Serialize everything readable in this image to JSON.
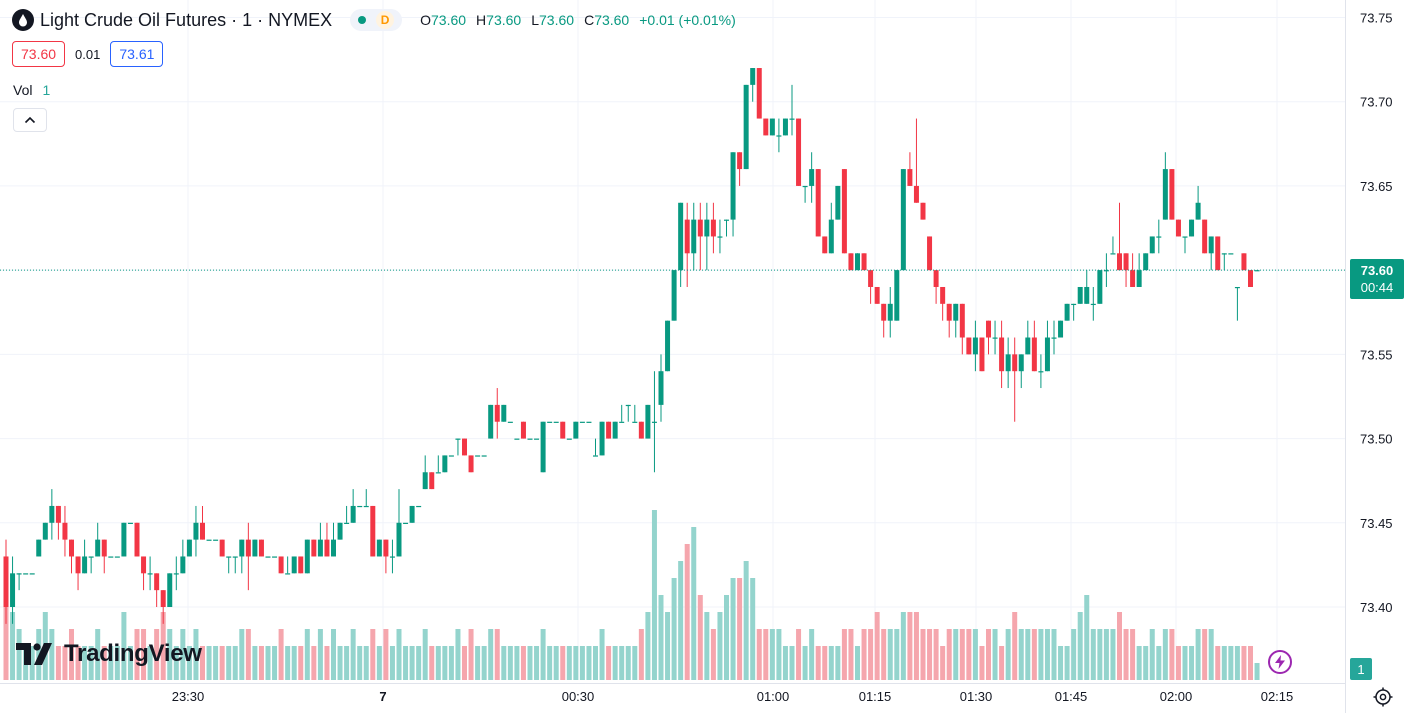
{
  "header": {
    "title": "Light Crude Oil Futures · 1 · NYMEX",
    "status_letter": "D",
    "ohlc": [
      {
        "k": "O",
        "v": "73.60"
      },
      {
        "k": "H",
        "v": "73.60"
      },
      {
        "k": "L",
        "v": "73.60"
      },
      {
        "k": "C",
        "v": "73.60"
      }
    ],
    "change": "+0.01 (+0.01%)"
  },
  "quotes": {
    "bid": "73.60",
    "spread": "0.01",
    "ask": "73.61"
  },
  "volume": {
    "label": "Vol",
    "value": "1"
  },
  "logo": {
    "text": "TradingView"
  },
  "current_price": {
    "price": "73.60",
    "countdown": "00:44"
  },
  "volume_axis_label": "1",
  "icons": {
    "symbol": "drop-icon",
    "collapse": "chevron-up-icon",
    "replay": "lightning-icon",
    "settings": "gear-icon"
  },
  "colors": {
    "up": "#089981",
    "down": "#f23645",
    "volume_up": "#94d4cd",
    "volume_down": "#f5a6ad",
    "grid": "#f0f3fa"
  },
  "chart_data": {
    "type": "candlestick",
    "interval_minutes": 1,
    "ylim": [
      73.36,
      73.76
    ],
    "y_ticks": [
      "73.40",
      "73.45",
      "73.50",
      "73.55",
      "73.60",
      "73.65",
      "73.70",
      "73.75"
    ],
    "x_ticks": [
      "23:30",
      "7",
      "00:30",
      "01:00",
      "01:15",
      "01:30",
      "01:45",
      "02:00",
      "02:15"
    ],
    "candles": [
      [
        73.43,
        73.44,
        73.39,
        73.4,
        6
      ],
      [
        73.4,
        73.43,
        73.39,
        73.42,
        4
      ],
      [
        73.42,
        73.42,
        73.41,
        73.42,
        3
      ],
      [
        73.42,
        73.42,
        73.42,
        73.42,
        2
      ],
      [
        73.42,
        73.42,
        73.42,
        73.42,
        2
      ],
      [
        73.43,
        73.44,
        73.43,
        73.44,
        3
      ],
      [
        73.44,
        73.45,
        73.44,
        73.45,
        4
      ],
      [
        73.45,
        73.47,
        73.44,
        73.46,
        3
      ],
      [
        73.46,
        73.46,
        73.44,
        73.45,
        2
      ],
      [
        73.45,
        73.46,
        73.43,
        73.44,
        2
      ],
      [
        73.44,
        73.44,
        73.42,
        73.43,
        3
      ],
      [
        73.43,
        73.43,
        73.41,
        73.42,
        2
      ],
      [
        73.42,
        73.44,
        73.42,
        73.43,
        2
      ],
      [
        73.43,
        73.43,
        73.42,
        73.43,
        2
      ],
      [
        73.43,
        73.45,
        73.43,
        73.44,
        3
      ],
      [
        73.44,
        73.44,
        73.42,
        73.43,
        2
      ],
      [
        73.43,
        73.43,
        73.43,
        73.43,
        2
      ],
      [
        73.43,
        73.43,
        73.43,
        73.43,
        2
      ],
      [
        73.43,
        73.45,
        73.43,
        73.45,
        4
      ],
      [
        73.45,
        73.45,
        73.45,
        73.45,
        2
      ],
      [
        73.45,
        73.45,
        73.43,
        73.43,
        3
      ],
      [
        73.43,
        73.43,
        73.41,
        73.42,
        3
      ],
      [
        73.42,
        73.43,
        73.41,
        73.42,
        2
      ],
      [
        73.42,
        73.42,
        73.4,
        73.41,
        3
      ],
      [
        73.41,
        73.41,
        73.39,
        73.4,
        4
      ],
      [
        73.4,
        73.42,
        73.4,
        73.42,
        3
      ],
      [
        73.42,
        73.43,
        73.41,
        73.42,
        2
      ],
      [
        73.42,
        73.44,
        73.42,
        73.43,
        3
      ],
      [
        73.43,
        73.44,
        73.43,
        73.44,
        2
      ],
      [
        73.44,
        73.46,
        73.43,
        73.45,
        3
      ],
      [
        73.45,
        73.46,
        73.44,
        73.44,
        2
      ],
      [
        73.44,
        73.44,
        73.44,
        73.44,
        2
      ],
      [
        73.44,
        73.44,
        73.44,
        73.44,
        2
      ],
      [
        73.44,
        73.44,
        73.43,
        73.43,
        2
      ],
      [
        73.43,
        73.43,
        73.42,
        73.43,
        2
      ],
      [
        73.43,
        73.43,
        73.42,
        73.43,
        2
      ],
      [
        73.43,
        73.44,
        73.42,
        73.44,
        3
      ],
      [
        73.44,
        73.45,
        73.41,
        73.43,
        3
      ],
      [
        73.43,
        73.44,
        73.43,
        73.44,
        2
      ],
      [
        73.44,
        73.44,
        73.43,
        73.43,
        2
      ],
      [
        73.43,
        73.43,
        73.43,
        73.43,
        2
      ],
      [
        73.43,
        73.43,
        73.43,
        73.43,
        2
      ],
      [
        73.43,
        73.43,
        73.42,
        73.42,
        3
      ],
      [
        73.42,
        73.43,
        73.42,
        73.42,
        2
      ],
      [
        73.42,
        73.43,
        73.42,
        73.43,
        2
      ],
      [
        73.43,
        73.43,
        73.42,
        73.42,
        2
      ],
      [
        73.42,
        73.44,
        73.42,
        73.44,
        3
      ],
      [
        73.44,
        73.44,
        73.43,
        73.43,
        2
      ],
      [
        73.43,
        73.45,
        73.43,
        73.44,
        3
      ],
      [
        73.44,
        73.45,
        73.43,
        73.43,
        2
      ],
      [
        73.43,
        73.45,
        73.43,
        73.44,
        3
      ],
      [
        73.44,
        73.45,
        73.44,
        73.45,
        2
      ],
      [
        73.45,
        73.46,
        73.45,
        73.45,
        2
      ],
      [
        73.45,
        73.47,
        73.45,
        73.46,
        3
      ],
      [
        73.46,
        73.46,
        73.46,
        73.46,
        2
      ],
      [
        73.46,
        73.47,
        73.46,
        73.46,
        2
      ],
      [
        73.46,
        73.46,
        73.43,
        73.43,
        3
      ],
      [
        73.43,
        73.44,
        73.43,
        73.44,
        2
      ],
      [
        73.44,
        73.44,
        73.42,
        73.43,
        3
      ],
      [
        73.43,
        73.44,
        73.42,
        73.43,
        2
      ],
      [
        73.43,
        73.47,
        73.43,
        73.45,
        3
      ],
      [
        73.45,
        73.45,
        73.45,
        73.45,
        2
      ],
      [
        73.45,
        73.46,
        73.45,
        73.46,
        2
      ],
      [
        73.46,
        73.46,
        73.46,
        73.46,
        2
      ],
      [
        73.47,
        73.49,
        73.47,
        73.48,
        3
      ],
      [
        73.48,
        73.48,
        73.47,
        73.47,
        2
      ],
      [
        73.48,
        73.49,
        73.48,
        73.48,
        2
      ],
      [
        73.48,
        73.49,
        73.48,
        73.49,
        2
      ],
      [
        73.49,
        73.49,
        73.49,
        73.49,
        2
      ],
      [
        73.5,
        73.5,
        73.49,
        73.5,
        3
      ],
      [
        73.5,
        73.5,
        73.49,
        73.49,
        2
      ],
      [
        73.49,
        73.49,
        73.48,
        73.48,
        3
      ],
      [
        73.49,
        73.49,
        73.49,
        73.49,
        2
      ],
      [
        73.49,
        73.49,
        73.49,
        73.49,
        2
      ],
      [
        73.5,
        73.52,
        73.5,
        73.52,
        3
      ],
      [
        73.52,
        73.53,
        73.5,
        73.51,
        3
      ],
      [
        73.51,
        73.52,
        73.51,
        73.52,
        2
      ],
      [
        73.51,
        73.51,
        73.51,
        73.51,
        2
      ],
      [
        73.5,
        73.5,
        73.5,
        73.5,
        2
      ],
      [
        73.51,
        73.51,
        73.5,
        73.5,
        2
      ],
      [
        73.5,
        73.5,
        73.5,
        73.5,
        2
      ],
      [
        73.5,
        73.5,
        73.5,
        73.5,
        2
      ],
      [
        73.48,
        73.51,
        73.48,
        73.51,
        3
      ],
      [
        73.51,
        73.51,
        73.51,
        73.51,
        2
      ],
      [
        73.51,
        73.51,
        73.51,
        73.51,
        2
      ],
      [
        73.51,
        73.51,
        73.5,
        73.5,
        2
      ],
      [
        73.5,
        73.5,
        73.5,
        73.5,
        2
      ],
      [
        73.5,
        73.51,
        73.5,
        73.51,
        2
      ],
      [
        73.51,
        73.51,
        73.51,
        73.51,
        2
      ],
      [
        73.51,
        73.51,
        73.51,
        73.51,
        2
      ],
      [
        73.49,
        73.5,
        73.49,
        73.49,
        2
      ],
      [
        73.49,
        73.51,
        73.49,
        73.51,
        3
      ],
      [
        73.51,
        73.51,
        73.5,
        73.5,
        2
      ],
      [
        73.5,
        73.51,
        73.5,
        73.51,
        2
      ],
      [
        73.51,
        73.52,
        73.51,
        73.51,
        2
      ],
      [
        73.52,
        73.52,
        73.51,
        73.52,
        2
      ],
      [
        73.51,
        73.52,
        73.51,
        73.51,
        2
      ],
      [
        73.51,
        73.51,
        73.5,
        73.5,
        3
      ],
      [
        73.5,
        73.52,
        73.5,
        73.52,
        4
      ],
      [
        73.51,
        73.54,
        73.48,
        73.51,
        10
      ],
      [
        73.52,
        73.55,
        73.51,
        73.54,
        5
      ],
      [
        73.54,
        73.57,
        73.54,
        73.57,
        4
      ],
      [
        73.57,
        73.6,
        73.57,
        73.6,
        6
      ],
      [
        73.6,
        73.64,
        73.59,
        73.64,
        7
      ],
      [
        73.63,
        73.64,
        73.59,
        73.61,
        8
      ],
      [
        73.61,
        73.64,
        73.6,
        73.63,
        9
      ],
      [
        73.63,
        73.64,
        73.6,
        73.62,
        5
      ],
      [
        73.62,
        73.64,
        73.6,
        73.63,
        4
      ],
      [
        73.63,
        73.64,
        73.61,
        73.62,
        3
      ],
      [
        73.62,
        73.63,
        73.61,
        73.62,
        4
      ],
      [
        73.63,
        73.63,
        73.62,
        73.63,
        5
      ],
      [
        73.63,
        73.67,
        73.62,
        73.67,
        6
      ],
      [
        73.67,
        73.67,
        73.65,
        73.66,
        6
      ],
      [
        73.66,
        73.71,
        73.66,
        73.71,
        7
      ],
      [
        73.71,
        73.72,
        73.7,
        73.72,
        6
      ],
      [
        73.72,
        73.72,
        73.69,
        73.69,
        3
      ],
      [
        73.69,
        73.69,
        73.68,
        73.68,
        3
      ],
      [
        73.68,
        73.69,
        73.68,
        73.69,
        3
      ],
      [
        73.68,
        73.69,
        73.67,
        73.68,
        3
      ],
      [
        73.68,
        73.69,
        73.68,
        73.69,
        2
      ],
      [
        73.69,
        73.71,
        73.68,
        73.69,
        2
      ],
      [
        73.69,
        73.69,
        73.65,
        73.65,
        3
      ],
      [
        73.65,
        73.65,
        73.64,
        73.65,
        2
      ],
      [
        73.65,
        73.67,
        73.64,
        73.66,
        3
      ],
      [
        73.66,
        73.66,
        73.62,
        73.62,
        2
      ],
      [
        73.62,
        73.62,
        73.61,
        73.61,
        2
      ],
      [
        73.61,
        73.64,
        73.61,
        73.63,
        2
      ],
      [
        73.63,
        73.65,
        73.63,
        73.65,
        2
      ],
      [
        73.66,
        73.66,
        73.61,
        73.61,
        3
      ],
      [
        73.61,
        73.61,
        73.6,
        73.6,
        3
      ],
      [
        73.6,
        73.61,
        73.6,
        73.61,
        2
      ],
      [
        73.61,
        73.61,
        73.6,
        73.6,
        3
      ],
      [
        73.6,
        73.6,
        73.58,
        73.59,
        3
      ],
      [
        73.59,
        73.59,
        73.58,
        73.58,
        4
      ],
      [
        73.58,
        73.58,
        73.56,
        73.57,
        3
      ],
      [
        73.57,
        73.59,
        73.56,
        73.58,
        3
      ],
      [
        73.57,
        73.6,
        73.57,
        73.6,
        3
      ],
      [
        73.6,
        73.66,
        73.6,
        73.66,
        4
      ],
      [
        73.66,
        73.67,
        73.65,
        73.65,
        4
      ],
      [
        73.65,
        73.69,
        73.64,
        73.64,
        4
      ],
      [
        73.64,
        73.64,
        73.63,
        73.63,
        3
      ],
      [
        73.62,
        73.62,
        73.6,
        73.6,
        3
      ],
      [
        73.6,
        73.6,
        73.58,
        73.59,
        3
      ],
      [
        73.59,
        73.59,
        73.57,
        73.58,
        2
      ],
      [
        73.58,
        73.58,
        73.56,
        73.57,
        3
      ],
      [
        73.57,
        73.58,
        73.56,
        73.58,
        3
      ],
      [
        73.58,
        73.58,
        73.55,
        73.56,
        3
      ],
      [
        73.56,
        73.56,
        73.55,
        73.55,
        3
      ],
      [
        73.55,
        73.57,
        73.54,
        73.56,
        3
      ],
      [
        73.56,
        73.56,
        73.54,
        73.54,
        2
      ],
      [
        73.57,
        73.57,
        73.55,
        73.56,
        3
      ],
      [
        73.56,
        73.57,
        73.55,
        73.56,
        3
      ],
      [
        73.56,
        73.57,
        73.53,
        73.54,
        2
      ],
      [
        73.54,
        73.56,
        73.53,
        73.55,
        3
      ],
      [
        73.55,
        73.56,
        73.51,
        73.54,
        4
      ],
      [
        73.54,
        73.55,
        73.53,
        73.55,
        3
      ],
      [
        73.55,
        73.57,
        73.55,
        73.56,
        3
      ],
      [
        73.56,
        73.57,
        73.54,
        73.54,
        3
      ],
      [
        73.54,
        73.55,
        73.53,
        73.54,
        3
      ],
      [
        73.54,
        73.57,
        73.54,
        73.56,
        3
      ],
      [
        73.56,
        73.57,
        73.55,
        73.56,
        3
      ],
      [
        73.56,
        73.57,
        73.56,
        73.57,
        2
      ],
      [
        73.57,
        73.58,
        73.57,
        73.58,
        2
      ],
      [
        73.58,
        73.58,
        73.57,
        73.58,
        3
      ],
      [
        73.58,
        73.59,
        73.58,
        73.59,
        4
      ],
      [
        73.58,
        73.6,
        73.58,
        73.59,
        5
      ],
      [
        73.58,
        73.59,
        73.57,
        73.58,
        3
      ],
      [
        73.58,
        73.6,
        73.58,
        73.6,
        3
      ],
      [
        73.6,
        73.61,
        73.59,
        73.6,
        3
      ],
      [
        73.61,
        73.62,
        73.61,
        73.61,
        3
      ],
      [
        73.61,
        73.64,
        73.6,
        73.6,
        4
      ],
      [
        73.61,
        73.61,
        73.59,
        73.6,
        3
      ],
      [
        73.6,
        73.61,
        73.59,
        73.59,
        3
      ],
      [
        73.59,
        73.61,
        73.59,
        73.6,
        2
      ],
      [
        73.6,
        73.61,
        73.6,
        73.61,
        2
      ],
      [
        73.61,
        73.62,
        73.61,
        73.62,
        3
      ],
      [
        73.62,
        73.63,
        73.61,
        73.62,
        2
      ],
      [
        73.63,
        73.67,
        73.63,
        73.66,
        3
      ],
      [
        73.66,
        73.66,
        73.63,
        73.63,
        3
      ],
      [
        73.63,
        73.63,
        73.62,
        73.62,
        2
      ],
      [
        73.62,
        73.62,
        73.61,
        73.62,
        2
      ],
      [
        73.62,
        73.63,
        73.62,
        73.63,
        2
      ],
      [
        73.63,
        73.65,
        73.63,
        73.64,
        3
      ],
      [
        73.63,
        73.63,
        73.61,
        73.61,
        3
      ],
      [
        73.61,
        73.62,
        73.6,
        73.62,
        3
      ],
      [
        73.62,
        73.62,
        73.6,
        73.6,
        2
      ],
      [
        73.61,
        73.61,
        73.6,
        73.61,
        2
      ],
      [
        73.61,
        73.61,
        73.61,
        73.61,
        2
      ],
      [
        73.59,
        73.59,
        73.57,
        73.59,
        2
      ],
      [
        73.61,
        73.61,
        73.6,
        73.6,
        2
      ],
      [
        73.6,
        73.6,
        73.59,
        73.59,
        2
      ],
      [
        73.6,
        73.6,
        73.6,
        73.6,
        1
      ]
    ]
  }
}
